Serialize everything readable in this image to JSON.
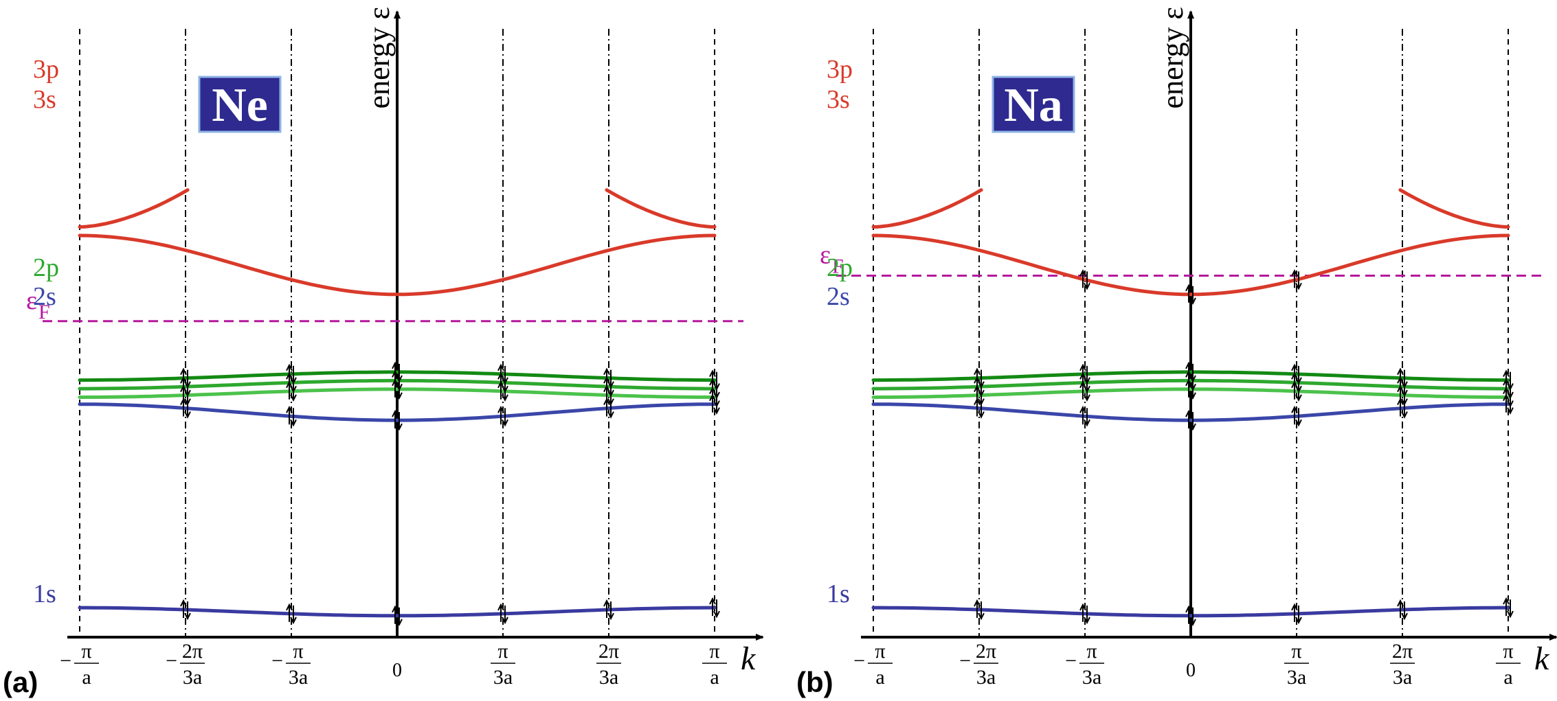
{
  "colors": {
    "s3": "#d93a2a",
    "p3": "#d93a2a",
    "p2_light": "#4cc24c",
    "p2_mid": "#2ea82e",
    "p2_dark": "#138a13",
    "s2": "#3a46a8",
    "s1": "#3a3aa0",
    "fermi": "#b5179e",
    "box": "#2e2a8f",
    "box_border": "#8fb4e6"
  },
  "panels": [
    {
      "panel_label": "(a)",
      "element": "Ne",
      "y_axis_label": "energy ε",
      "x_axis_label": "k",
      "fermi_label": "ε",
      "fermi_sub": "F",
      "fermi_level": 5.9,
      "band_labels": {
        "p3": "3p",
        "s3": "3s",
        "p2": "2p",
        "s2": "2s",
        "s1": "1s"
      },
      "ticks": [
        {
          "num": "π",
          "den": "a",
          "sign": "−",
          "zero": false
        },
        {
          "num": "2π",
          "den": "3a",
          "sign": "−",
          "zero": false
        },
        {
          "num": "π",
          "den": "3a",
          "sign": "−",
          "zero": false
        },
        {
          "num": "0",
          "den": "",
          "sign": "",
          "zero": true
        },
        {
          "num": "π",
          "den": "3a",
          "sign": "",
          "zero": false
        },
        {
          "num": "2π",
          "den": "3a",
          "sign": "",
          "zero": false
        },
        {
          "num": "π",
          "den": "a",
          "sign": "",
          "zero": false
        }
      ],
      "arrow_sets": [
        "s1",
        "s2",
        "p2a",
        "p2b",
        "p2c"
      ]
    },
    {
      "panel_label": "(b)",
      "element": "Na",
      "y_axis_label": "energy ε",
      "x_axis_label": "k",
      "fermi_label": "ε",
      "fermi_sub": "F",
      "fermi_level": 6.75,
      "band_labels": {
        "p3": "3p",
        "s3": "3s",
        "p2": "2p",
        "s2": "2s",
        "s1": "1s"
      },
      "ticks": [
        {
          "num": "π",
          "den": "a",
          "sign": "−",
          "zero": false
        },
        {
          "num": "2π",
          "den": "3a",
          "sign": "−",
          "zero": false
        },
        {
          "num": "π",
          "den": "3a",
          "sign": "−",
          "zero": false
        },
        {
          "num": "0",
          "den": "",
          "sign": "",
          "zero": true
        },
        {
          "num": "π",
          "den": "3a",
          "sign": "",
          "zero": false
        },
        {
          "num": "2π",
          "den": "3a",
          "sign": "",
          "zero": false
        },
        {
          "num": "π",
          "den": "a",
          "sign": "",
          "zero": false
        }
      ],
      "arrow_sets": [
        "s1",
        "s2",
        "p2a",
        "p2b",
        "p2c",
        "s3center"
      ]
    }
  ],
  "bands": {
    "s1": {
      "center": 0.4,
      "edge": 0.55
    },
    "s2": {
      "center": 4.05,
      "edge": 4.35
    },
    "p2a": {
      "center": 4.63,
      "edge": 4.48
    },
    "p2b": {
      "center": 4.79,
      "edge": 4.64
    },
    "p2c": {
      "center": 4.95,
      "edge": 4.8
    },
    "s3": {
      "center": 6.4,
      "edge": 7.5
    },
    "p3": {
      "edge": 7.66,
      "top": 8.35
    }
  }
}
